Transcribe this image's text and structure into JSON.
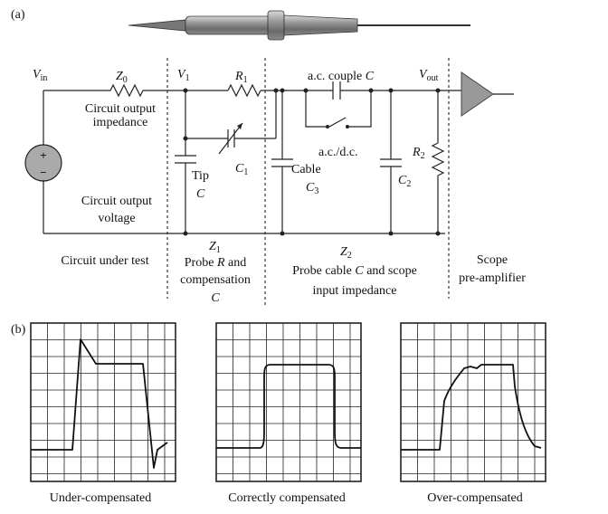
{
  "panel_a_label": "(a)",
  "panel_b_label": "(b)",
  "labels": {
    "vin_main": "V",
    "vin_sub": "in",
    "z0_main": "Z",
    "z0_sub": "0",
    "v1_main": "V",
    "v1_sub": "1",
    "r1_main": "R",
    "r1_sub": "1",
    "ac_couple_text": "a.c. couple ",
    "ac_couple_c": "C",
    "vout_main": "V",
    "vout_sub": "out",
    "circuit_output_impedance_1": "Circuit output",
    "circuit_output_impedance_2": "impedance",
    "ac_dc": "a.c./d.c.",
    "r2_main": "R",
    "r2_sub": "2",
    "c1_main": "C",
    "c1_sub": "1",
    "tip_1": "Tip",
    "tip_2": "C",
    "cable_1": "Cable",
    "c3_main": "C",
    "c3_sub": "3",
    "c2_main": "C",
    "c2_sub": "2",
    "circuit_output_voltage_1": "Circuit output",
    "circuit_output_voltage_2": "voltage",
    "plus": "+",
    "minus": "−",
    "z1_main": "Z",
    "z1_sub": "1",
    "z2_main": "Z",
    "z2_sub": "2",
    "circuit_under_test": "Circuit under test",
    "probe_r_1a": "Probe ",
    "probe_r_1b": "R",
    "probe_r_1c": " and",
    "probe_r_2": "compensation",
    "probe_r_3": "C",
    "probe_cable_1a": "Probe cable ",
    "probe_cable_1b": "C",
    "probe_cable_1c": " and scope",
    "probe_cable_2": "input impedance",
    "scope_1": "Scope",
    "scope_2": "pre-amplifier"
  },
  "captions": {
    "under": "Under-compensated",
    "correct": "Correctly compensated",
    "over": "Over-compensated"
  }
}
